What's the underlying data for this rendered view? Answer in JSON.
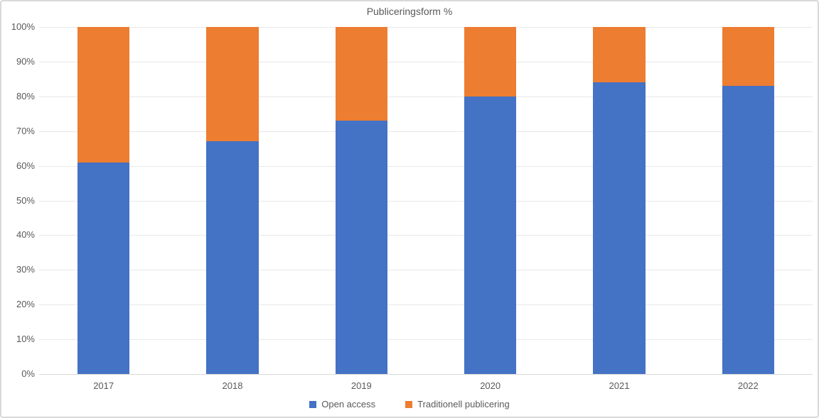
{
  "chart_data": {
    "type": "bar",
    "stacked": true,
    "stacking": "percent",
    "title": "Publiceringsform %",
    "categories": [
      "2017",
      "2018",
      "2019",
      "2020",
      "2021",
      "2022"
    ],
    "series": [
      {
        "name": "Open access",
        "color": "#4472C4",
        "values": [
          61,
          67,
          73,
          80,
          84,
          83
        ]
      },
      {
        "name": "Traditionell publicering",
        "color": "#ED7D31",
        "values": [
          39,
          33,
          27,
          20,
          16,
          17
        ]
      }
    ],
    "xlabel": "",
    "ylabel": "",
    "ylim": [
      0,
      100
    ],
    "yticks": [
      "0%",
      "10%",
      "20%",
      "30%",
      "40%",
      "50%",
      "60%",
      "70%",
      "80%",
      "90%",
      "100%"
    ],
    "grid": "horizontal",
    "legend_position": "bottom",
    "colors": {
      "text": "#595959",
      "gridline": "#E8E8E8",
      "axis_line": "#D9D9D9",
      "background": "#FFFFFF",
      "border": "#D9D9D9"
    }
  }
}
